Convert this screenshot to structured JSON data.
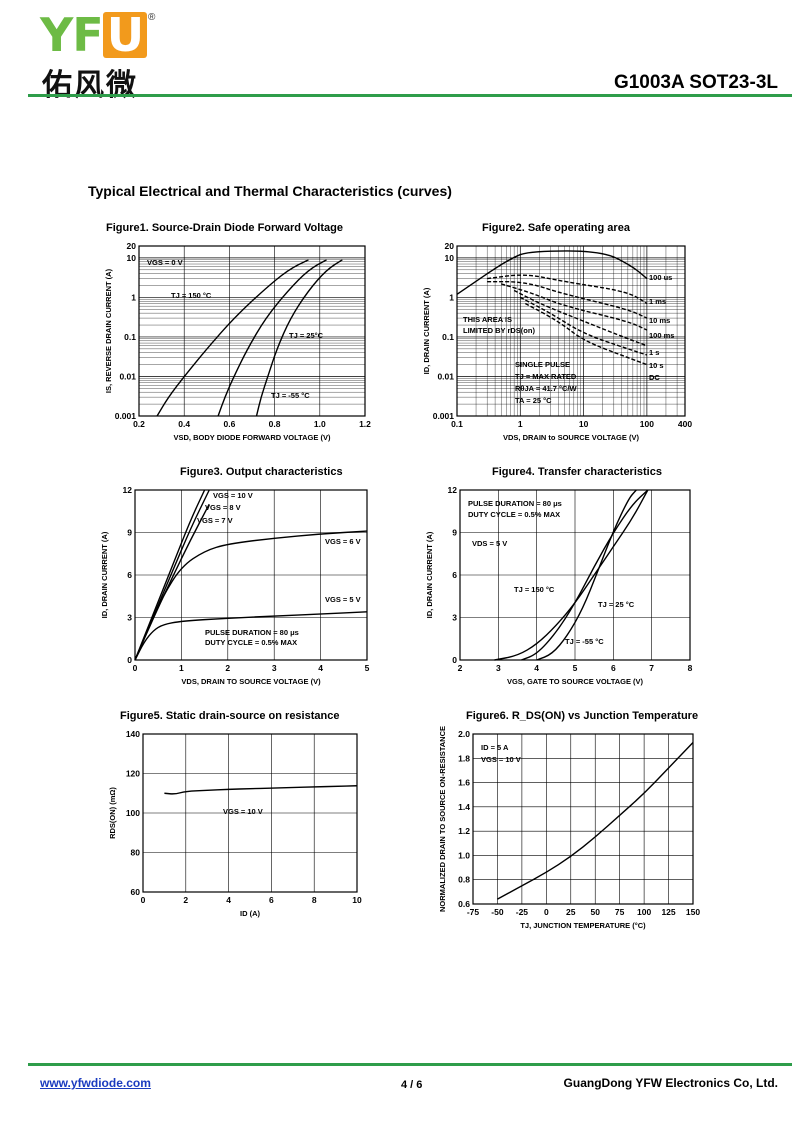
{
  "header": {
    "logo_letters": "YF",
    "logo_box_letter": "U",
    "logo_reg": "®",
    "logo_cn": "佑风微",
    "part_number": "G1003A  SOT23-3L",
    "colors": {
      "green": "#2e9d4a",
      "logo_green": "#6dbb45",
      "logo_orange": "#f29a1c"
    }
  },
  "section_title": "Typical Electrical and Thermal Characteristics (curves)",
  "footer": {
    "website": "www.yfwdiode.com",
    "page": "4 / 6",
    "company": "GuangDong YFW Electronics Co, Ltd."
  },
  "chart_data": [
    {
      "id": "fig1",
      "type": "line",
      "title": "Figure1. Source-Drain Diode Forward Voltage",
      "xlabel": "V_SD, BODY DIODE FORWARD VOLTAGE (V)",
      "ylabel": "I_S, REVERSE DRAIN CURRENT (A)",
      "xscale": "linear",
      "yscale": "log",
      "xlim": [
        0.2,
        1.2
      ],
      "ylim": [
        0.001,
        20
      ],
      "xticks": [
        "0.2",
        "0.4",
        "0.6",
        "0.8",
        "1.0",
        "1.2"
      ],
      "yticks": [
        "0.001",
        "0.01",
        "0.1",
        "1",
        "10",
        "20"
      ],
      "grid": true,
      "annotations": [
        "V_GS = 0 V",
        "T_J = 150 °C",
        "T_J = 25°C",
        "T_J = -55 °C"
      ],
      "series": [
        {
          "name": "T_J = 150 °C",
          "x": [
            0.28,
            0.33,
            0.4,
            0.5,
            0.62,
            0.75,
            0.86,
            0.95
          ],
          "y": [
            0.001,
            0.003,
            0.01,
            0.05,
            0.3,
            1.5,
            5,
            9
          ]
        },
        {
          "name": "T_J = 25°C",
          "x": [
            0.55,
            0.58,
            0.62,
            0.68,
            0.76,
            0.86,
            0.95,
            1.03
          ],
          "y": [
            0.001,
            0.003,
            0.01,
            0.05,
            0.3,
            1.5,
            5,
            9
          ]
        },
        {
          "name": "T_J = -55 °C",
          "x": [
            0.72,
            0.74,
            0.77,
            0.81,
            0.87,
            0.95,
            1.03,
            1.1
          ],
          "y": [
            0.001,
            0.003,
            0.01,
            0.05,
            0.3,
            1.5,
            5,
            9
          ]
        }
      ]
    },
    {
      "id": "fig2",
      "type": "line",
      "title": "Figure2. Safe operating area",
      "xlabel": "V_DS, DRAIN to SOURCE VOLTAGE (V)",
      "ylabel": "I_D, DRAIN CURRENT (A)",
      "xscale": "log",
      "yscale": "log",
      "xlim": [
        0.1,
        400
      ],
      "ylim": [
        0.001,
        20
      ],
      "xticks": [
        "0.1",
        "1",
        "10",
        "100",
        "400"
      ],
      "yticks": [
        "0.001",
        "0.01",
        "0.1",
        "1",
        "10",
        "20"
      ],
      "grid": true,
      "annotations": [
        "THIS AREA IS",
        "LIMITED BY r_DS(on)",
        "SINGLE PULSE",
        "T_J = MAX RATED",
        "R_θJA = 41.7 °C/W",
        "T_A = 25 °C"
      ],
      "series": [
        {
          "name": "100 us",
          "x": [
            0.1,
            0.7,
            1.5,
            20,
            60,
            100
          ],
          "y": [
            1.2,
            10,
            15,
            15,
            6,
            3
          ]
        },
        {
          "name": "1 ms",
          "x": [
            0.3,
            1.2,
            5,
            50,
            100
          ],
          "y": [
            3,
            4,
            2.5,
            1.4,
            0.7
          ]
        },
        {
          "name": "10 ms",
          "x": [
            0.3,
            1.2,
            5,
            50,
            100
          ],
          "y": [
            2.5,
            2.5,
            1.2,
            0.5,
            0.3
          ]
        },
        {
          "name": "100 ms",
          "x": [
            0.5,
            1.5,
            5,
            50,
            100
          ],
          "y": [
            2.2,
            1.3,
            0.6,
            0.25,
            0.15
          ]
        },
        {
          "name": "1 s",
          "x": [
            0.8,
            2,
            10,
            50,
            100
          ],
          "y": [
            1.5,
            0.7,
            0.25,
            0.09,
            0.06
          ]
        },
        {
          "name": "10 s",
          "x": [
            1,
            3,
            10,
            50,
            100
          ],
          "y": [
            1.0,
            0.4,
            0.12,
            0.05,
            0.035
          ]
        },
        {
          "name": "DC",
          "x": [
            1.2,
            4,
            10,
            50,
            100
          ],
          "y": [
            0.7,
            0.25,
            0.08,
            0.03,
            0.02
          ]
        }
      ]
    },
    {
      "id": "fig3",
      "type": "line",
      "title": "Figure3. Output characteristics",
      "xlabel": "V_DS, DRAIN TO SOURCE VOLTAGE (V)",
      "ylabel": "I_D, DRAIN CURRENT (A)",
      "xlim": [
        0,
        5
      ],
      "ylim": [
        0,
        12
      ],
      "xticks": [
        "0",
        "1",
        "2",
        "3",
        "4",
        "5"
      ],
      "yticks": [
        "0",
        "3",
        "6",
        "9",
        "12"
      ],
      "grid": true,
      "annotations": [
        "PULSE DURATION = 80 μs",
        "DUTY CYCLE = 0.5% MAX"
      ],
      "series": [
        {
          "name": "V_GS = 10 V",
          "x": [
            0,
            0.4,
            0.8,
            1.2,
            1.5
          ],
          "y": [
            0,
            3.3,
            6.6,
            9.9,
            12
          ]
        },
        {
          "name": "V_GS = 8 V",
          "x": [
            0,
            0.4,
            0.8,
            1.2,
            1.6
          ],
          "y": [
            0,
            3.1,
            6.2,
            9.3,
            12
          ]
        },
        {
          "name": "V_GS = 7 V",
          "x": [
            0,
            0.4,
            0.8,
            1.2,
            1.6
          ],
          "y": [
            0,
            3.0,
            5.8,
            8.5,
            11
          ]
        },
        {
          "name": "V_GS = 6 V",
          "x": [
            0,
            0.3,
            0.6,
            1,
            1.5,
            2,
            3,
            4,
            5
          ],
          "y": [
            0,
            2.3,
            4.5,
            6.6,
            7.7,
            8.2,
            8.6,
            8.9,
            9.1
          ]
        },
        {
          "name": "V_GS = 5 V",
          "x": [
            0,
            0.2,
            0.4,
            0.6,
            1,
            2,
            3,
            4,
            5
          ],
          "y": [
            0,
            1.3,
            2.1,
            2.5,
            2.75,
            2.95,
            3.1,
            3.25,
            3.4
          ]
        }
      ]
    },
    {
      "id": "fig4",
      "type": "line",
      "title": "Figure4. Transfer characteristics",
      "xlabel": "V_GS, GATE TO SOURCE VOLTAGE (V)",
      "ylabel": "I_D, DRAIN CURRENT (A)",
      "xlim": [
        2,
        8
      ],
      "ylim": [
        0,
        12
      ],
      "xticks": [
        "2",
        "3",
        "4",
        "5",
        "6",
        "7",
        "8"
      ],
      "yticks": [
        "0",
        "3",
        "6",
        "9",
        "12"
      ],
      "grid": true,
      "annotations": [
        "PULSE DURATION = 80 μs",
        "DUTY CYCLE = 0.5% MAX",
        "V_DS = 5 V"
      ],
      "series": [
        {
          "name": "T_J = 150 °C",
          "x": [
            2.9,
            3.5,
            4.0,
            4.5,
            5.0,
            5.5,
            6.0,
            6.5,
            6.9
          ],
          "y": [
            0,
            0.3,
            1.1,
            2.4,
            4.0,
            6.0,
            8.0,
            10,
            12
          ]
        },
        {
          "name": "T_J = 25 °C",
          "x": [
            3.6,
            4.0,
            4.5,
            5.0,
            5.5,
            6.0,
            6.5,
            6.9
          ],
          "y": [
            0,
            0.4,
            1.9,
            4.0,
            6.6,
            9.0,
            11,
            12
          ]
        },
        {
          "name": "T_J = -55 °C",
          "x": [
            4.0,
            4.4,
            4.8,
            5.2,
            5.6,
            6.0,
            6.4,
            6.6
          ],
          "y": [
            0,
            0.4,
            1.7,
            3.6,
            6.3,
            9.1,
            11.4,
            12
          ]
        }
      ]
    },
    {
      "id": "fig5",
      "type": "line",
      "title": "Figure5. Static drain-source on resistance",
      "xlabel": "I_D (A)",
      "ylabel": "R_DS(ON) (mΩ)",
      "xlim": [
        0,
        10
      ],
      "ylim": [
        60,
        140
      ],
      "xticks": [
        "0",
        "2",
        "4",
        "6",
        "8",
        "10"
      ],
      "yticks": [
        "60",
        "80",
        "100",
        "120",
        "140"
      ],
      "grid": true,
      "annotations": [
        "V_GS = 10 V"
      ],
      "series": [
        {
          "name": "V_GS = 10 V",
          "x": [
            1,
            1.5,
            2,
            3,
            4,
            5,
            6,
            7,
            8,
            9,
            10
          ],
          "y": [
            110,
            109.5,
            111,
            111.5,
            112,
            112.3,
            112.6,
            112.9,
            113.2,
            113.5,
            113.8
          ]
        }
      ]
    },
    {
      "id": "fig6",
      "type": "line",
      "title": "Figure6. R_DS(ON) vs Junction Temperature",
      "xlabel": "T_J, JUNCTION TEMPERATURE (°C)",
      "ylabel": "NORMALIZED DRAIN TO SOURCE ON-RESISTANCE",
      "xlim": [
        -75,
        150
      ],
      "ylim": [
        0.6,
        2.0
      ],
      "xticks": [
        "-75",
        "-50",
        "-25",
        "0",
        "25",
        "50",
        "75",
        "100",
        "125",
        "150"
      ],
      "yticks": [
        "0.6",
        "0.8",
        "1.0",
        "1.2",
        "1.4",
        "1.6",
        "1.8",
        "2.0"
      ],
      "grid": true,
      "annotations": [
        "I_D = 5 A",
        "V_GS = 10 V"
      ],
      "series": [
        {
          "name": "",
          "x": [
            -50,
            -25,
            0,
            25,
            50,
            75,
            100,
            125,
            150
          ],
          "y": [
            0.64,
            0.75,
            0.86,
            0.99,
            1.15,
            1.33,
            1.51,
            1.72,
            1.93
          ]
        }
      ]
    }
  ]
}
